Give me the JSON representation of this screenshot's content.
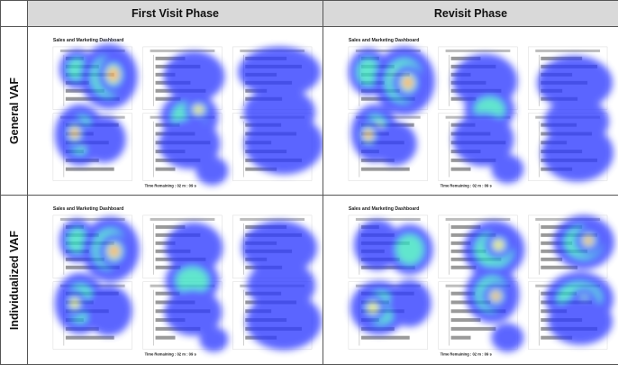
{
  "columns": [
    "First Visit Phase",
    "Revisit Phase"
  ],
  "rows": [
    "General VAF",
    "Individualized VAF"
  ],
  "dashboard_title": "Sales and Marketing Dashboard",
  "timer_label": "Time Remaining :",
  "timer_value": "02 m : 09 s",
  "colors": {
    "header_bg": "#d9d9d9",
    "border": "#555555",
    "heat_low": "#2f3bff",
    "heat_mid": "#36e0c0",
    "heat_high": "#ffe640",
    "heat_peak": "#ff3020"
  },
  "cells": [
    {
      "row": "General VAF",
      "column": "First Visit Phase"
    },
    {
      "row": "General VAF",
      "column": "Revisit Phase"
    },
    {
      "row": "Individualized VAF",
      "column": "First Visit Phase"
    },
    {
      "row": "Individualized VAF",
      "column": "Revisit Phase"
    }
  ]
}
